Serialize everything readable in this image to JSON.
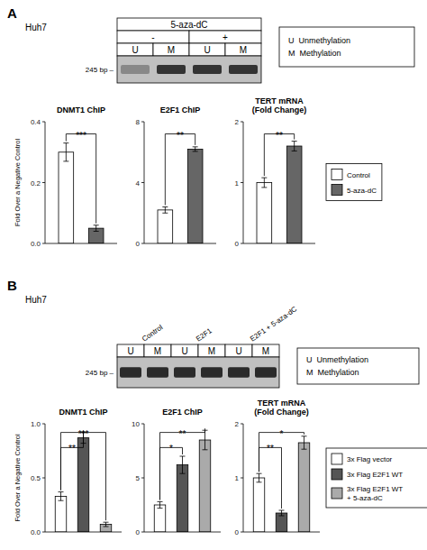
{
  "chart_data": [
    {
      "type": "gel",
      "title": "Huh7",
      "annotations": [
        "A"
      ],
      "header_rows": [
        [
          "5-aza-dC"
        ],
        [
          "-",
          "+"
        ],
        [
          "U",
          "M",
          "U",
          "M"
        ]
      ],
      "colors": [
        "#888888",
        "#333333",
        "#333333",
        "#333333"
      ],
      "size_label": "245 bp –",
      "key": [
        "U  Unmethylation",
        "M  Methylation"
      ]
    },
    {
      "type": "bar",
      "title": "DNMT1 ChIP",
      "ylabel": "Fold Over a Negative Control",
      "categories": [
        null
      ],
      "series": [
        {
          "name": "Control",
          "color": "#ffffff",
          "values": [
            0.3
          ],
          "errors": [
            0.03
          ]
        },
        {
          "name": "5-aza-dC",
          "color": "#666666",
          "values": [
            0.05
          ],
          "errors": [
            0.01
          ]
        }
      ],
      "ylim": [
        0,
        0.4
      ],
      "yticks": [
        {
          "value": 0,
          "label": "0.0"
        },
        0.2,
        0.4
      ],
      "annotations": [
        {
          "text": "***",
          "between": [
            0,
            1
          ]
        }
      ],
      "tick_labels": "y"
    },
    {
      "type": "bar",
      "title": "E2F1 ChIP",
      "categories": [
        null
      ],
      "series": [
        {
          "name": "Control",
          "color": "#ffffff",
          "values": [
            2.2
          ],
          "errors": [
            0.2
          ]
        },
        {
          "name": "5-aza-dC",
          "color": "#666666",
          "values": [
            6.2
          ],
          "errors": [
            0.15
          ]
        }
      ],
      "ylim": [
        0,
        8
      ],
      "yticks": [
        0,
        4,
        8
      ],
      "annotations": [
        {
          "text": "**",
          "between": [
            0,
            1
          ]
        }
      ],
      "tick_labels": "y"
    },
    {
      "type": "bar",
      "title": "TERT mRNA\n(Fold Change)",
      "categories": [
        null
      ],
      "series": [
        {
          "name": "Control",
          "color": "#ffffff",
          "values": [
            1.0
          ],
          "errors": [
            0.08
          ]
        },
        {
          "name": "5-aza-dC",
          "color": "#666666",
          "values": [
            1.6
          ],
          "errors": [
            0.08
          ]
        }
      ],
      "ylim": [
        0,
        2
      ],
      "yticks": [
        0,
        1,
        2
      ],
      "annotations": [
        {
          "text": "**",
          "between": [
            0,
            1
          ]
        }
      ],
      "tick_labels": "y",
      "legend": "right"
    },
    {
      "type": "gel",
      "title": "Huh7",
      "annotations": [
        "B"
      ],
      "lane_groups": [
        "Control",
        "E2F1",
        "E2F1 + 5-aza-dC"
      ],
      "header_rows": [
        [
          "U",
          "M",
          "U",
          "M",
          "U",
          "M"
        ]
      ],
      "colors": [
        "#2a2a2a",
        "#2a2a2a",
        "#2a2a2a",
        "#2a2a2a",
        "#2a2a2a",
        "#2a2a2a"
      ],
      "size_label": "245 bp –",
      "key": [
        "U  Unmethylation",
        "M  Methylation"
      ]
    },
    {
      "type": "bar",
      "title": "DNMT1 ChIP",
      "ylabel": "Fold Over a Negative Control",
      "categories": [
        null
      ],
      "series": [
        {
          "name": "3x Flag vector",
          "color": "#ffffff",
          "values": [
            0.33
          ],
          "errors": [
            0.04
          ]
        },
        {
          "name": "3x Flag E2F1 WT",
          "color": "#555555",
          "values": [
            0.87
          ],
          "errors": [
            0.05
          ]
        },
        {
          "name": "3x Flag E2F1 WT\n+ 5-aza-dC",
          "color": "#aaaaaa",
          "values": [
            0.07
          ],
          "errors": [
            0.02
          ]
        }
      ],
      "ylim": [
        0,
        1.0
      ],
      "yticks": [
        {
          "value": 0,
          "label": "0.0"
        },
        0.5,
        {
          "value": 1,
          "label": "1.0"
        }
      ],
      "annotations": [
        {
          "text": "**",
          "between": [
            0,
            1
          ]
        },
        {
          "text": "***",
          "between": [
            0,
            2
          ]
        }
      ],
      "tick_labels": "y"
    },
    {
      "type": "bar",
      "title": "E2F1 ChIP",
      "categories": [
        null
      ],
      "series": [
        {
          "name": "3x Flag vector",
          "color": "#ffffff",
          "values": [
            2.5
          ],
          "errors": [
            0.3
          ]
        },
        {
          "name": "3x Flag E2F1 WT",
          "color": "#555555",
          "values": [
            6.2
          ],
          "errors": [
            0.8
          ]
        },
        {
          "name": "3x Flag E2F1 WT\n+ 5-aza-dC",
          "color": "#aaaaaa",
          "values": [
            8.5
          ],
          "errors": [
            0.9
          ]
        }
      ],
      "ylim": [
        0,
        10
      ],
      "yticks": [
        0,
        5,
        10
      ],
      "annotations": [
        {
          "text": "*",
          "between": [
            0,
            1
          ]
        },
        {
          "text": "**",
          "between": [
            0,
            2
          ]
        }
      ],
      "tick_labels": "y"
    },
    {
      "type": "bar",
      "title": "TERT mRNA\n(Fold Change)",
      "categories": [
        null
      ],
      "series": [
        {
          "name": "3x Flag vector",
          "color": "#ffffff",
          "values": [
            1.0
          ],
          "errors": [
            0.08
          ]
        },
        {
          "name": "3x Flag E2F1 WT",
          "color": "#555555",
          "values": [
            0.35
          ],
          "errors": [
            0.05
          ]
        },
        {
          "name": "3x Flag E2F1 WT\n+ 5-aza-dC",
          "color": "#aaaaaa",
          "values": [
            1.65
          ],
          "errors": [
            0.12
          ]
        }
      ],
      "ylim": [
        0,
        2
      ],
      "yticks": [
        0,
        1,
        2
      ],
      "annotations": [
        {
          "text": "**",
          "between": [
            0,
            1
          ]
        },
        {
          "text": "*",
          "between": [
            0,
            2
          ]
        }
      ],
      "tick_labels": "y",
      "legend": "right"
    }
  ]
}
